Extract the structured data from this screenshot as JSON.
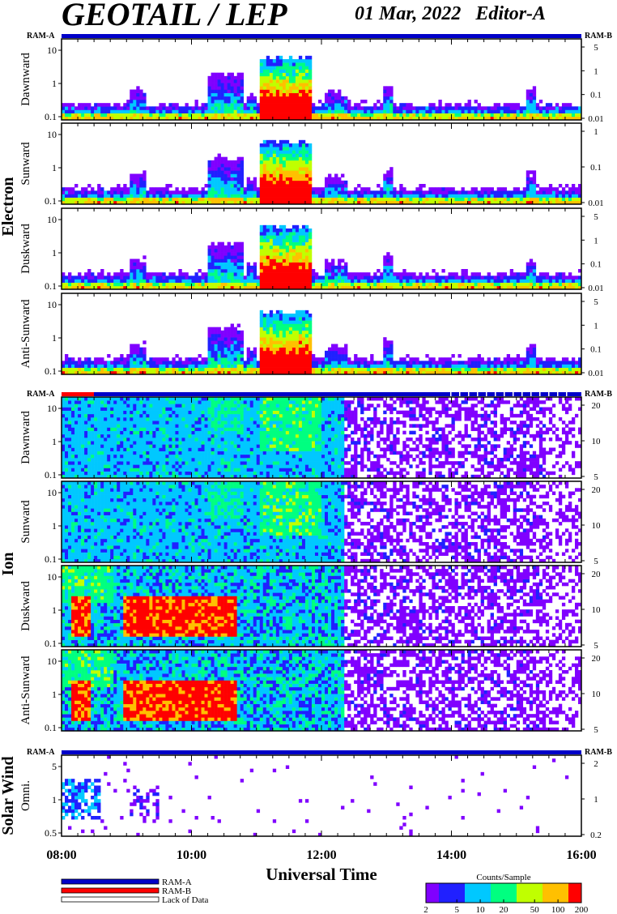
{
  "header": {
    "title": "GEOTAIL / LEP",
    "date": "01 Mar, 2022",
    "editor": "Editor-A"
  },
  "ram_labels": {
    "a": "RAM-A",
    "b": "RAM-B"
  },
  "sections": [
    {
      "name": "Electron",
      "panels": [
        {
          "label": "Dawnward",
          "left_ticks": [
            "10",
            "1",
            "0.1"
          ],
          "right_ticks": [
            "5",
            "1",
            "0.1",
            "0.01"
          ]
        },
        {
          "label": "Sunward",
          "left_ticks": [
            "10",
            "1",
            "0.1"
          ],
          "right_ticks": [
            "1",
            "0.1",
            "0.01"
          ]
        },
        {
          "label": "Duskward",
          "left_ticks": [
            "10",
            "1",
            "0.1"
          ],
          "right_ticks": [
            "5",
            "1",
            "0.1",
            "0.01"
          ]
        },
        {
          "label": "Anti-Sunward",
          "left_ticks": [
            "10",
            "1",
            "0.1"
          ],
          "right_ticks": [
            "5",
            "1",
            "0.1",
            "0.01"
          ]
        }
      ]
    },
    {
      "name": "Ion",
      "panels": [
        {
          "label": "Dawnward",
          "left_ticks": [
            "10",
            "1",
            "0.1"
          ],
          "right_ticks": [
            "20",
            "10",
            "5"
          ]
        },
        {
          "label": "Sunward",
          "left_ticks": [
            "10",
            "1",
            "0.1"
          ],
          "right_ticks": [
            "20",
            "10",
            "5"
          ]
        },
        {
          "label": "Duskward",
          "left_ticks": [
            "10",
            "1",
            "0.1"
          ],
          "right_ticks": [
            "20",
            "10",
            "5"
          ]
        },
        {
          "label": "Anti-Sunward",
          "left_ticks": [
            "10",
            "1",
            "0.1"
          ],
          "right_ticks": [
            "20",
            "10",
            "5"
          ]
        }
      ]
    },
    {
      "name": "Solar Wind",
      "panels": [
        {
          "label": "Omni.",
          "left_ticks": [
            "5",
            "1",
            "0.5"
          ],
          "right_ticks": [
            "2",
            "1",
            "0.2"
          ]
        }
      ]
    }
  ],
  "chart_data": {
    "type": "heatmap",
    "xlabel": "Universal Time",
    "x_ticks": [
      "08:00",
      "10:00",
      "12:00",
      "14:00",
      "16:00"
    ],
    "x_range": [
      "08:00",
      "16:00"
    ],
    "colorbar": {
      "title": "Counts/Sample",
      "ticks": [
        "2",
        "5",
        "10",
        "20",
        "50",
        "100",
        "200"
      ],
      "scale": "log",
      "range": [
        2,
        200
      ],
      "colors": [
        "#8000ff",
        "#2020ff",
        "#00c8ff",
        "#00ff80",
        "#c0ff00",
        "#ffc000",
        "#ff0000"
      ]
    },
    "y_scale": "log"
  },
  "legend": [
    {
      "label": "RAM-A",
      "color": "#0000c8"
    },
    {
      "label": "RAM-B",
      "color": "#ff0000"
    },
    {
      "label": "Lack of Data",
      "color": "#ffffff"
    }
  ]
}
